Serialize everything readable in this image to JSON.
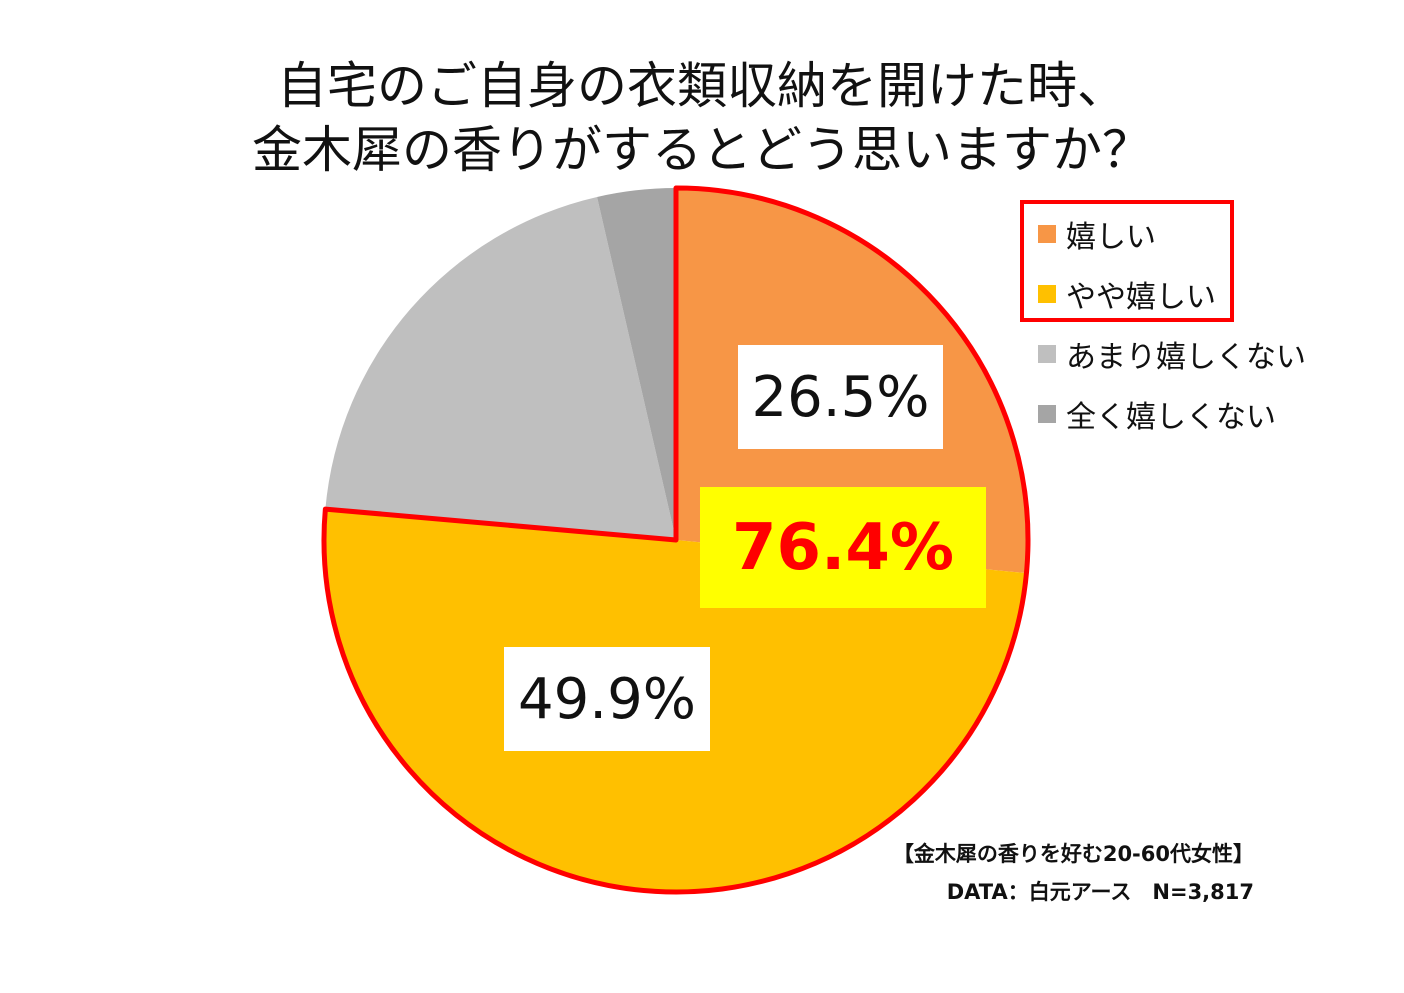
{
  "chart_data": {
    "type": "pie",
    "title_lines": [
      "自宅のご自身の衣類収納を開けた時、",
      "金木犀の香りがするとどう思いますか？"
    ],
    "slices": [
      {
        "label": "嬉しい",
        "value": 26.5,
        "color": "#f79646",
        "label_text": "26.5%",
        "highlighted": true
      },
      {
        "label": "やや嬉しい",
        "value": 49.9,
        "color": "#ffc000",
        "label_text": "49.9%",
        "highlighted": true
      },
      {
        "label": "あまり嬉しくない",
        "value": 20.0,
        "color": "#bfbfbf",
        "highlighted": false
      },
      {
        "label": "全く嬉しくない",
        "value": 3.6,
        "color": "#a5a5a5",
        "highlighted": false
      }
    ],
    "combined_label": "76.4%",
    "highlight_color": "#ff0000",
    "legend_position": "top-right"
  },
  "notes": {
    "sample": "【金木犀の香りを好む20-60代女性】",
    "source": "DATA：白元アース　N=3,817"
  }
}
